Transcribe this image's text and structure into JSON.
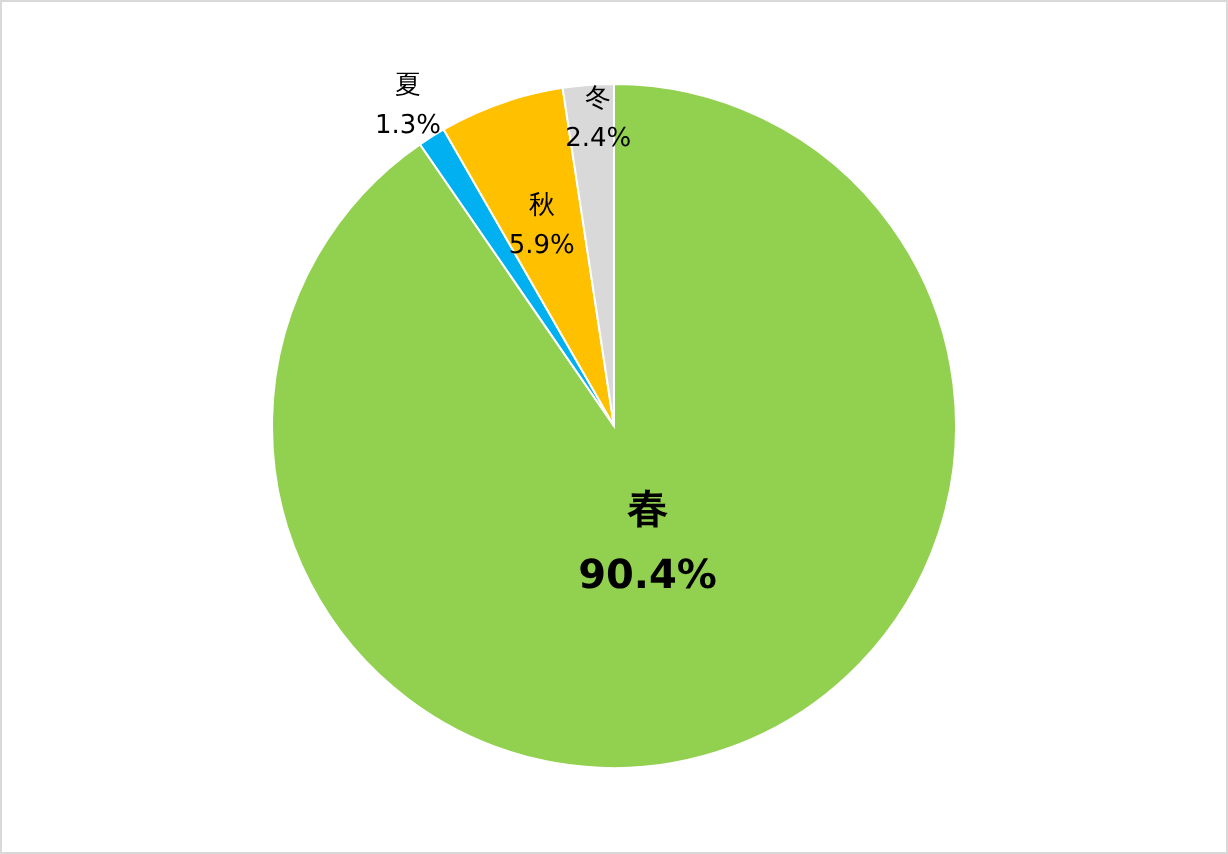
{
  "chart_data": {
    "type": "pie",
    "categories": [
      "春",
      "夏",
      "秋",
      "冬"
    ],
    "values": [
      90.4,
      1.3,
      5.9,
      2.4
    ],
    "colors": [
      "#92d050",
      "#00b0f0",
      "#ffc000",
      "#d9d9d9"
    ],
    "value_labels": [
      "90.4%",
      "1.3%",
      "5.9%",
      "2.4%"
    ]
  }
}
